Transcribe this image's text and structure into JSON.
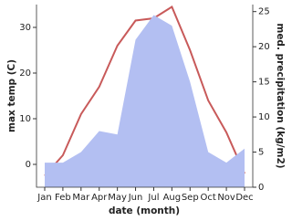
{
  "chart_data": {
    "type": "line",
    "x_label": "date (month)",
    "y_label": "max temp (C)",
    "y2_label": "med. precipitation (kg/m2)",
    "categories": [
      "Jan",
      "Feb",
      "Mar",
      "Apr",
      "May",
      "Jun",
      "Jul",
      "Aug",
      "Sep",
      "Oct",
      "Nov",
      "Dec"
    ],
    "series": [
      {
        "name": "max temp",
        "type": "line",
        "color": "#c85a5a",
        "values": [
          -2.5,
          2,
          11,
          17,
          26,
          31.5,
          32,
          34.5,
          25,
          14,
          7,
          -2
        ]
      },
      {
        "name": "med. precipitation",
        "type": "area",
        "axis": "y2",
        "color": "#b3bff2",
        "values": [
          3.5,
          3.5,
          5,
          8,
          7.5,
          21,
          24.5,
          23,
          15,
          5,
          3.5,
          5.5
        ]
      }
    ],
    "ylim": [
      -5,
      35
    ],
    "yticks": [
      0,
      10,
      20,
      30
    ],
    "y2lim": [
      0,
      26
    ],
    "y2ticks": [
      0,
      5,
      10,
      15,
      20,
      25
    ]
  }
}
